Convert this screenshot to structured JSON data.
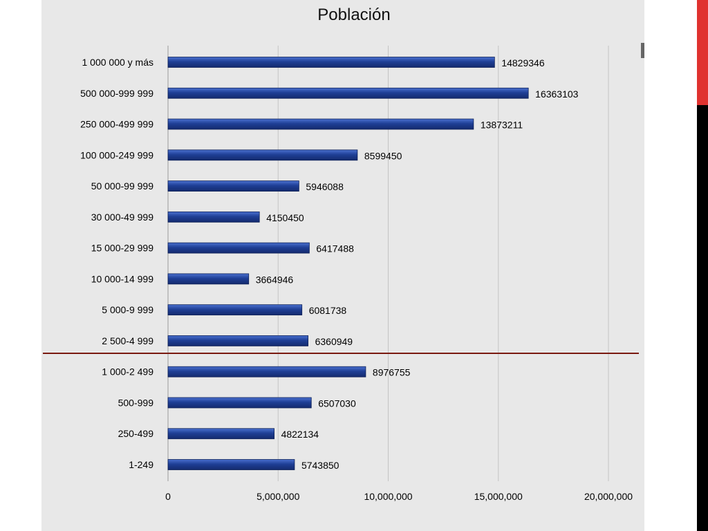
{
  "chart_data": {
    "type": "bar",
    "orientation": "horizontal",
    "title": "Población",
    "categories": [
      "1 000 000 y más",
      "500 000-999 999",
      "250 000-499 999",
      "100 000-249 999",
      "50 000-99 999",
      "30 000-49 999",
      "15 000-29 999",
      "10 000-14 999",
      "5 000-9 999",
      "2 500-4 999",
      "1 000-2 499",
      "500-999",
      "250-499",
      "1-249"
    ],
    "values": [
      14829346,
      16363103,
      13873211,
      8599450,
      5946088,
      4150450,
      6417488,
      3664946,
      6081738,
      6360949,
      8976755,
      6507030,
      4822134,
      5743850
    ],
    "value_labels": [
      "14829346",
      "16363103",
      "13873211",
      "8599450",
      "5946088",
      "4150450",
      "6417488",
      "3664946",
      "6081738",
      "6360949",
      "8976755",
      "6507030",
      "4822134",
      "5743850"
    ],
    "xlim": [
      0,
      20000000
    ],
    "xticks": [
      0,
      5000000,
      10000000,
      15000000,
      20000000
    ],
    "xtick_labels": [
      "0",
      "5,000,000",
      "10,000,000",
      "15,000,000",
      "20,000,000"
    ],
    "grid": "vertical",
    "legend": "none",
    "divider_after_category": "2 500-4 999",
    "colors": {
      "bar": "#1f3f96",
      "bar_highlight": "#3a62c4",
      "grid": "#c4c4c4",
      "divider": "#7a1a10",
      "panel": "#e8e8e8",
      "accent_red": "#e0322f"
    }
  }
}
